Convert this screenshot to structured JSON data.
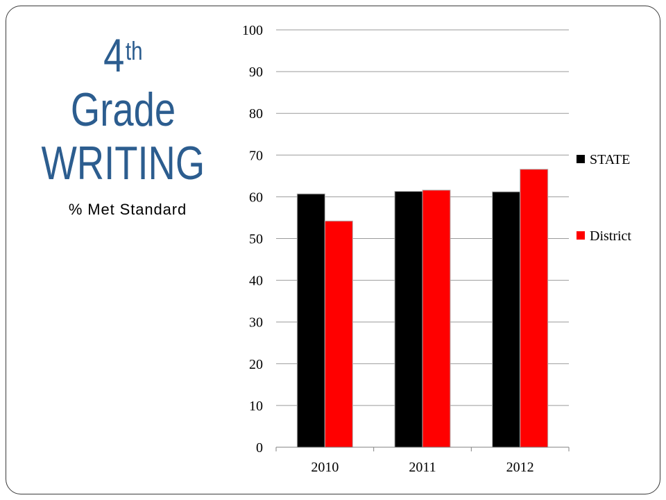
{
  "slide": {
    "title": {
      "number": "4",
      "superscript": "th",
      "line2": "Grade",
      "line3": "WRITING"
    },
    "subtitle": "% Met Standard"
  },
  "colors": {
    "title": "#2C5D8F",
    "subtitle": "#000000",
    "gridline": "#9a9a9a",
    "frame": "#3a3a3a"
  },
  "chart_data": {
    "type": "bar",
    "categories": [
      "2010",
      "2011",
      "2012"
    ],
    "series": [
      {
        "name": "STATE",
        "values": [
          60.7,
          61.3,
          61.2
        ],
        "color": "#000000"
      },
      {
        "name": "District",
        "values": [
          54.2,
          61.6,
          66.6
        ],
        "color": "#FF0000"
      }
    ],
    "y_ticks": [
      0,
      10,
      20,
      30,
      40,
      50,
      60,
      70,
      80,
      90,
      100
    ],
    "ylim": [
      0,
      100
    ],
    "grid": true,
    "legend_position": "right"
  }
}
